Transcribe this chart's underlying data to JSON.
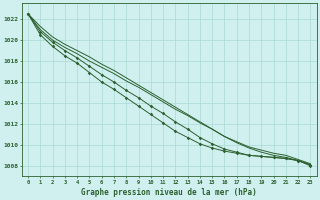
{
  "title": "Graphe pression niveau de la mer (hPa)",
  "background_color": "#cff0ee",
  "grid_color": "#aad8d4",
  "line_color": "#2d6030",
  "x_ticks": [
    0,
    1,
    2,
    3,
    4,
    5,
    6,
    7,
    8,
    9,
    10,
    11,
    12,
    13,
    14,
    15,
    16,
    17,
    18,
    19,
    20,
    21,
    22,
    23
  ],
  "ylim": [
    1007.0,
    1023.5
  ],
  "yticks": [
    1008,
    1010,
    1012,
    1014,
    1016,
    1018,
    1020,
    1022
  ],
  "line1": [
    1022.5,
    1021.0,
    1020.0,
    1019.3,
    1018.7,
    1018.0,
    1017.4,
    1016.8,
    1016.1,
    1015.5,
    1014.8,
    1014.1,
    1013.4,
    1012.8,
    1012.1,
    1011.5,
    1010.8,
    1010.3,
    1009.8,
    1009.5,
    1009.2,
    1009.0,
    1008.6,
    1008.2
  ],
  "line2": [
    1022.5,
    1021.3,
    1020.3,
    1019.6,
    1019.0,
    1018.4,
    1017.7,
    1017.1,
    1016.4,
    1015.7,
    1015.0,
    1014.3,
    1013.6,
    1012.9,
    1012.2,
    1011.5,
    1010.8,
    1010.2,
    1009.7,
    1009.3,
    1009.0,
    1008.8,
    1008.5,
    1008.1
  ],
  "line3_markers": [
    1022.5,
    1020.8,
    1019.8,
    1019.0,
    1018.3,
    1017.5,
    1016.7,
    1016.0,
    1015.2,
    1014.5,
    1013.7,
    1013.0,
    1012.2,
    1011.5,
    1010.7,
    1010.1,
    1009.6,
    1009.3,
    1009.0,
    1008.9,
    1008.8,
    1008.7,
    1008.5,
    1008.1
  ],
  "line4_markers": [
    1022.5,
    1020.5,
    1019.4,
    1018.5,
    1017.8,
    1016.9,
    1016.0,
    1015.3,
    1014.5,
    1013.7,
    1012.9,
    1012.1,
    1011.3,
    1010.7,
    1010.1,
    1009.7,
    1009.4,
    1009.2,
    1009.0,
    1008.9,
    1008.8,
    1008.7,
    1008.5,
    1008.0
  ]
}
